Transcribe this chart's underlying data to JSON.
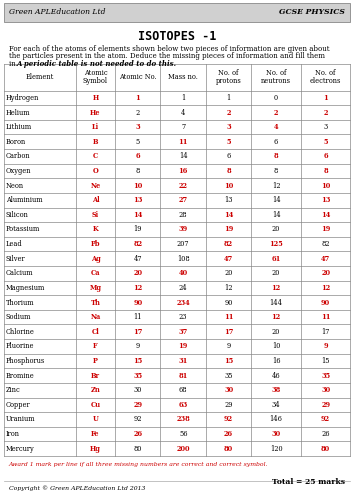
{
  "title": "ISOTOPES -1",
  "instr_line1": "For each of the atoms of elements shown below two pieces of information are given about",
  "instr_line2": "the particles present in the atom. Deduce the missing pieces of information and fill them",
  "instr_line3": "in. ",
  "instr_line3b": "A periodic table is not needed to do this.",
  "header_company": "Green APLEducation Ltd",
  "header_subject": "GCSE PHYSICS",
  "columns": [
    "Element",
    "Atomic\nSymbol",
    "Atomic No.",
    "Mass no.",
    "No. of\nprotons",
    "No. of\nneutrons",
    "No. of\nelectrons"
  ],
  "rows": [
    [
      "Hydrogen",
      "H",
      "1",
      "1",
      "1",
      "0",
      "1"
    ],
    [
      "Helium",
      "He",
      "2",
      "4",
      "2",
      "2",
      "2"
    ],
    [
      "Lithium",
      "Li",
      "3",
      "7",
      "3",
      "4",
      "3"
    ],
    [
      "Boron",
      "B",
      "5",
      "11",
      "5",
      "6",
      "5"
    ],
    [
      "Carbon",
      "C",
      "6",
      "14",
      "6",
      "8",
      "6"
    ],
    [
      "Oxygen",
      "O",
      "8",
      "16",
      "8",
      "8",
      "8"
    ],
    [
      "Neon",
      "Ne",
      "10",
      "22",
      "10",
      "12",
      "10"
    ],
    [
      "Aluminium",
      "Al",
      "13",
      "27",
      "13",
      "14",
      "13"
    ],
    [
      "Silicon",
      "Si",
      "14",
      "28",
      "14",
      "14",
      "14"
    ],
    [
      "Potassium",
      "K",
      "19",
      "39",
      "19",
      "20",
      "19"
    ],
    [
      "Lead",
      "Pb",
      "82",
      "207",
      "82",
      "125",
      "82"
    ],
    [
      "Silver",
      "Ag",
      "47",
      "108",
      "47",
      "61",
      "47"
    ],
    [
      "Calcium",
      "Ca",
      "20",
      "40",
      "20",
      "20",
      "20"
    ],
    [
      "Magnesium",
      "Mg",
      "12",
      "24",
      "12",
      "12",
      "12"
    ],
    [
      "Thorium",
      "Th",
      "90",
      "234",
      "90",
      "144",
      "90"
    ],
    [
      "Sodium",
      "Na",
      "11",
      "23",
      "11",
      "12",
      "11"
    ],
    [
      "Chlorine",
      "Cl",
      "17",
      "37",
      "17",
      "20",
      "17"
    ],
    [
      "Fluorine",
      "F",
      "9",
      "19",
      "9",
      "10",
      "9"
    ],
    [
      "Phosphorus",
      "P",
      "15",
      "31",
      "15",
      "16",
      "15"
    ],
    [
      "Bromine",
      "Br",
      "35",
      "81",
      "35",
      "46",
      "35"
    ],
    [
      "Zinc",
      "Zn",
      "30",
      "68",
      "30",
      "38",
      "30"
    ],
    [
      "Copper",
      "Cu",
      "29",
      "63",
      "29",
      "34",
      "29"
    ],
    [
      "Uranium",
      "U",
      "92",
      "238",
      "92",
      "146",
      "92"
    ],
    [
      "Iron",
      "Fe",
      "26",
      "56",
      "26",
      "30",
      "26"
    ],
    [
      "Mercury",
      "Hg",
      "80",
      "200",
      "80",
      "120",
      "80"
    ]
  ],
  "red_map": {
    "0": [
      1,
      2,
      6
    ],
    "1": [
      1,
      4,
      5,
      6
    ],
    "2": [
      1,
      2,
      4,
      5
    ],
    "3": [
      1,
      3,
      4,
      6
    ],
    "4": [
      1,
      2,
      5,
      6
    ],
    "5": [
      1,
      3,
      4,
      6
    ],
    "6": [
      1,
      2,
      3,
      4,
      6
    ],
    "7": [
      1,
      2,
      3,
      6
    ],
    "8": [
      1,
      2,
      4,
      6
    ],
    "9": [
      1,
      3,
      4,
      6
    ],
    "10": [
      1,
      2,
      4,
      5
    ],
    "11": [
      1,
      4,
      5,
      6
    ],
    "12": [
      1,
      2,
      3,
      6
    ],
    "13": [
      1,
      2,
      5,
      6
    ],
    "14": [
      1,
      2,
      3,
      6
    ],
    "15": [
      1,
      4,
      5,
      6
    ],
    "16": [
      1,
      2,
      3,
      4
    ],
    "17": [
      1,
      3,
      6
    ],
    "18": [
      1,
      2,
      3,
      4
    ],
    "19": [
      1,
      2,
      3,
      6
    ],
    "20": [
      1,
      4,
      5,
      6
    ],
    "21": [
      1,
      2,
      3,
      6
    ],
    "22": [
      1,
      3,
      4,
      6
    ],
    "23": [
      1,
      2,
      4,
      5
    ],
    "24": [
      1,
      3,
      4,
      6
    ]
  },
  "footer_text": "Award 1 mark per line if all three missing numbers are correct and correct symbol.",
  "total_text": "Total = 25 marks",
  "bg_color": "#ffffff",
  "header_bg": "#d0d0d0",
  "red_color": "#cc0000",
  "black_color": "#000000",
  "copyright": "Copyright © Green APLEducation Ltd 2013"
}
